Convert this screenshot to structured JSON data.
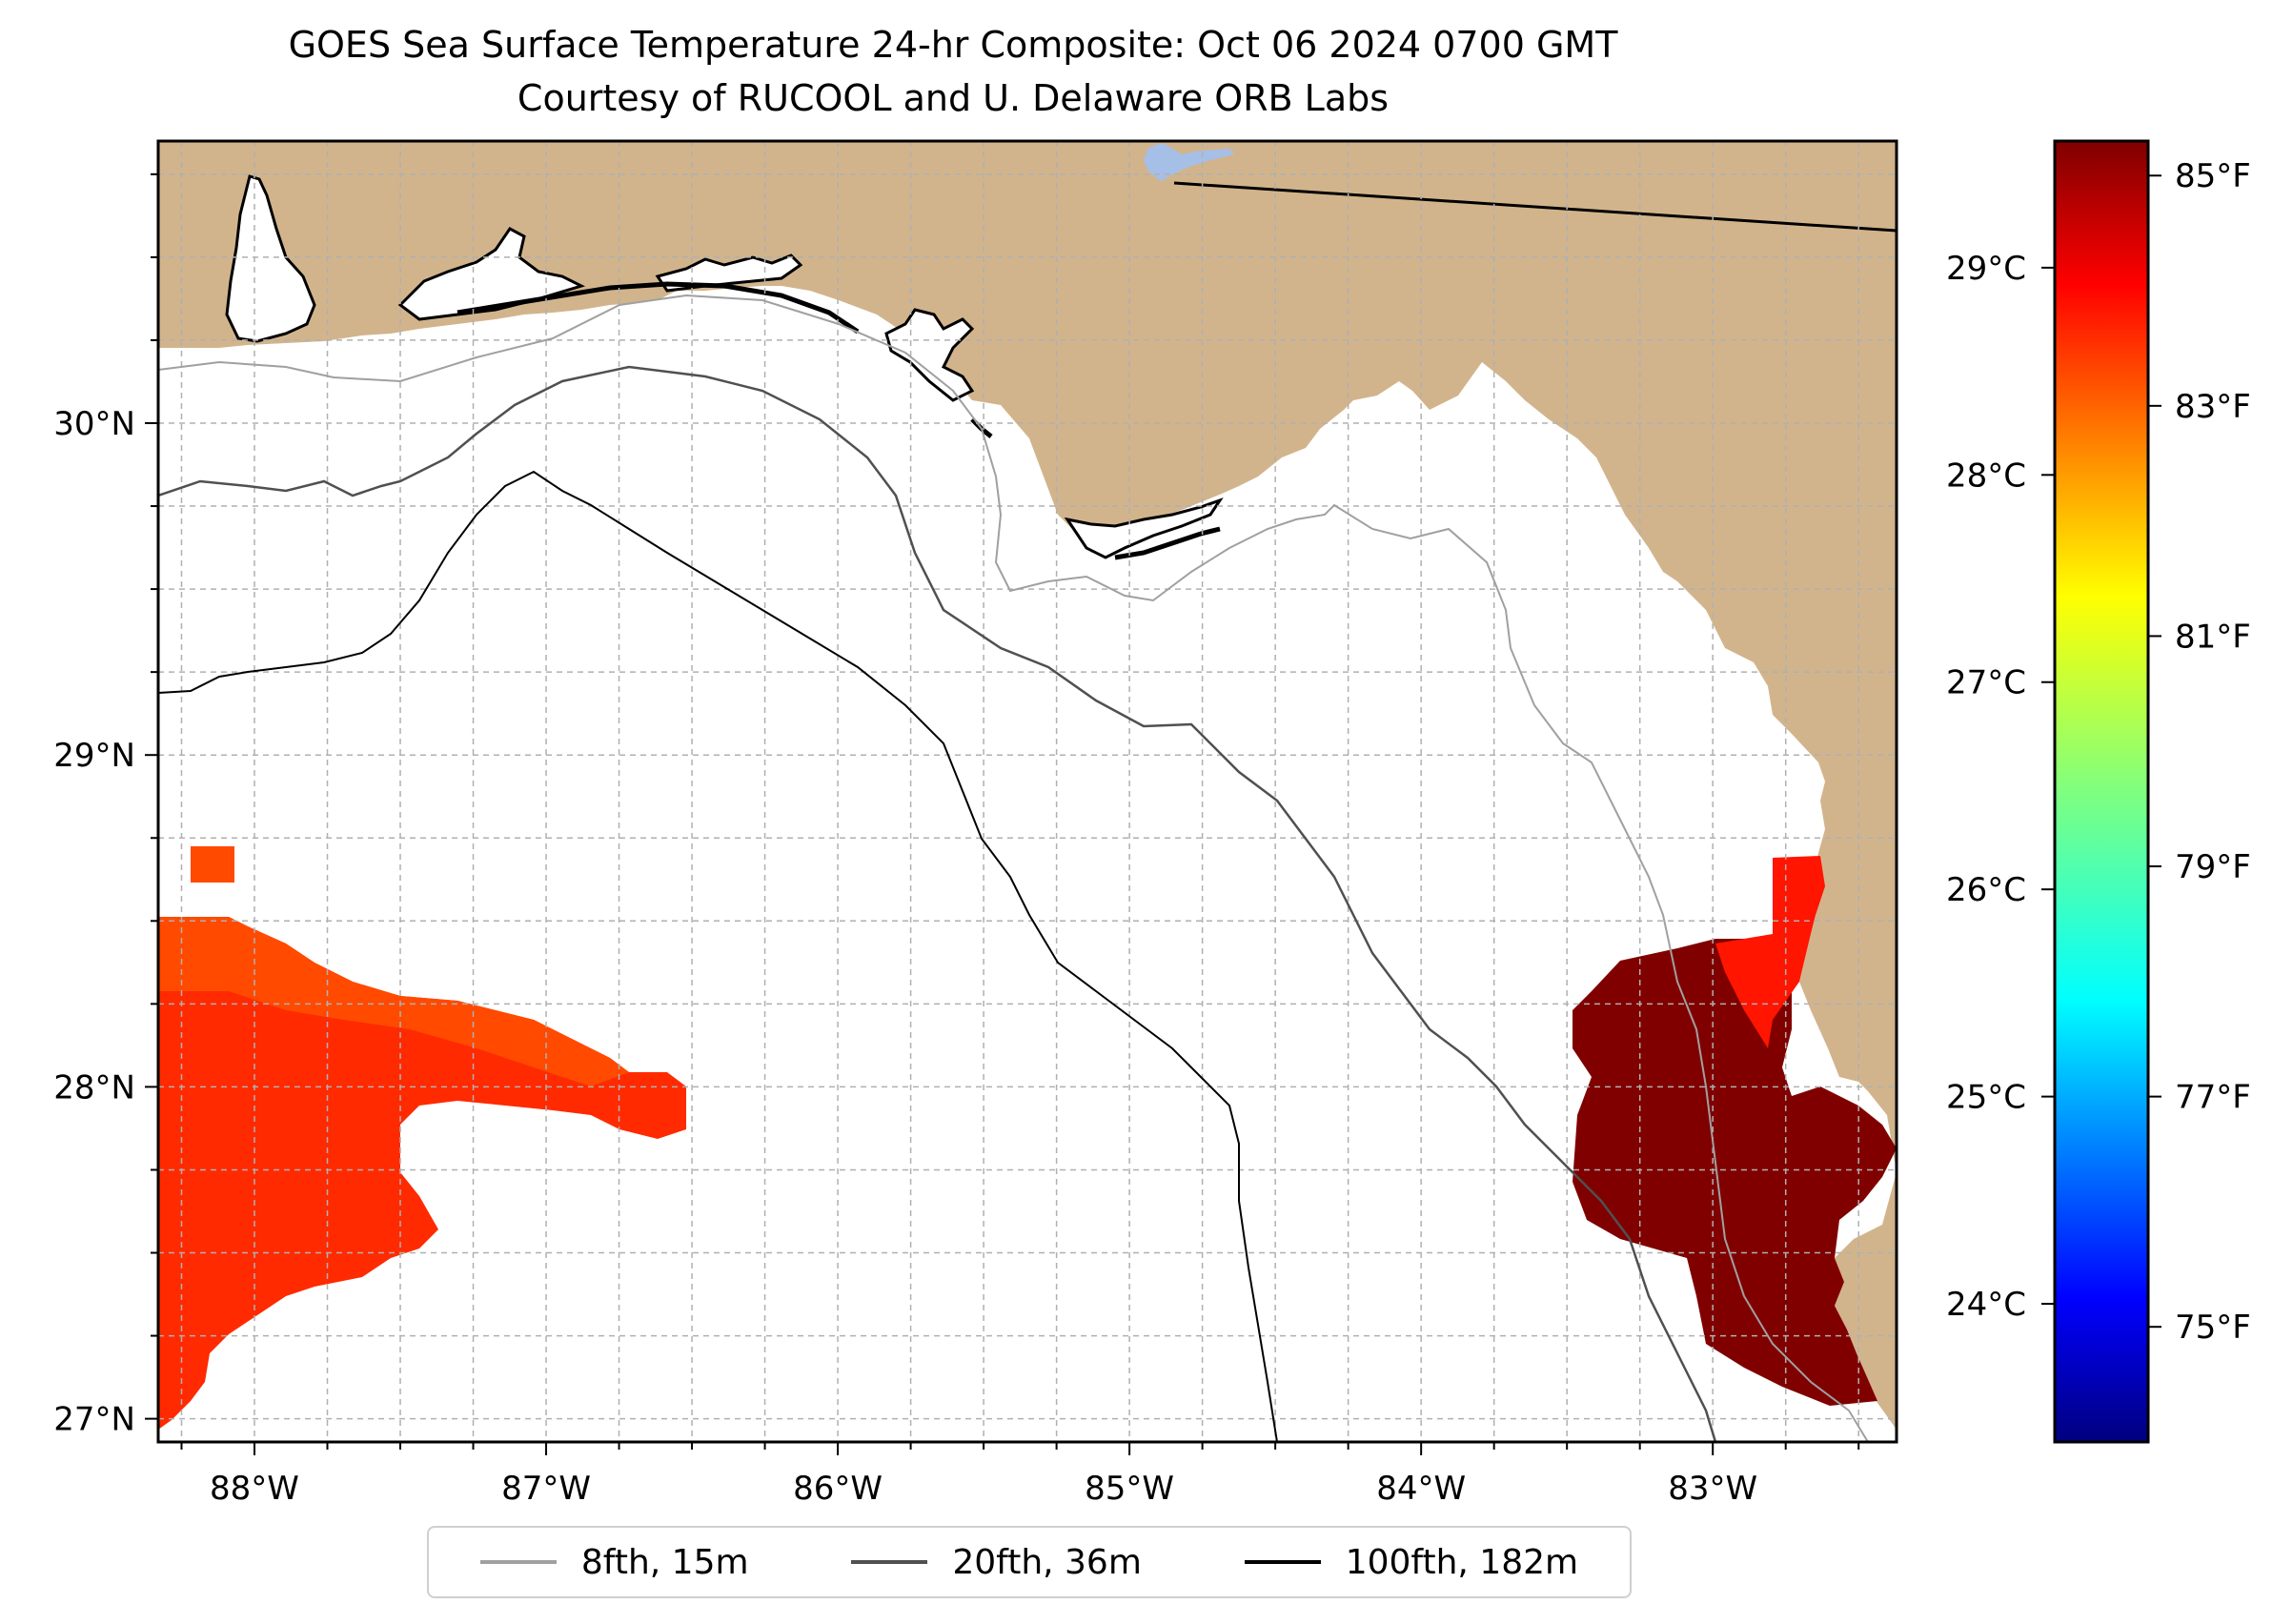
{
  "title": {
    "line1": "GOES Sea Surface Temperature 24-hr Composite: Oct 06 2024 0700 GMT",
    "line2": "Courtesy of RUCOOL and U. Delaware ORB Labs"
  },
  "map": {
    "lon_range": [
      -88.33,
      -82.37
    ],
    "lat_range": [
      26.93,
      30.85
    ],
    "land_color": "#d2b48c",
    "water_color": "#ffffff",
    "lake_color": "#a5bfe7",
    "grid": "dashed, every 0.25 degrees",
    "lon_ticks": [
      {
        "value": -88,
        "label": "88°W"
      },
      {
        "value": -87,
        "label": "87°W"
      },
      {
        "value": -86,
        "label": "86°W"
      },
      {
        "value": -85,
        "label": "85°W"
      },
      {
        "value": -84,
        "label": "84°W"
      },
      {
        "value": -83,
        "label": "83°W"
      }
    ],
    "lat_ticks": [
      {
        "value": 30,
        "label": "30°N"
      },
      {
        "value": 29,
        "label": "29°N"
      },
      {
        "value": 28,
        "label": "28°N"
      },
      {
        "value": 27,
        "label": "27°N"
      }
    ],
    "sst_patches": [
      {
        "region": "western",
        "temperature_f": 84.2,
        "color": "#ff2a00"
      },
      {
        "region": "western-north",
        "temperature_f": 83.7,
        "color": "#ff4a00"
      },
      {
        "region": "eastern-offshore",
        "temperature_f": 85.2,
        "color": "#800000"
      },
      {
        "region": "eastern-nearshore",
        "temperature_f": 84.6,
        "color": "#ff1500"
      }
    ]
  },
  "colorbar": {
    "colormap": "jet",
    "range_f": [
      74.0,
      85.3
    ],
    "celsius_ticks": [
      {
        "value": 29,
        "label": "29°C"
      },
      {
        "value": 28,
        "label": "28°C"
      },
      {
        "value": 27,
        "label": "27°C"
      },
      {
        "value": 26,
        "label": "26°C"
      },
      {
        "value": 25,
        "label": "25°C"
      },
      {
        "value": 24,
        "label": "24°C"
      }
    ],
    "fahrenheit_ticks": [
      {
        "value": 85,
        "label": "85°F"
      },
      {
        "value": 83,
        "label": "83°F"
      },
      {
        "value": 81,
        "label": "81°F"
      },
      {
        "value": 79,
        "label": "79°F"
      },
      {
        "value": 77,
        "label": "77°F"
      },
      {
        "value": 75,
        "label": "75°F"
      }
    ]
  },
  "legend": {
    "items": [
      {
        "label": "8fth, 15m",
        "color": "#a0a0a0"
      },
      {
        "label": "20fth, 36m",
        "color": "#505050"
      },
      {
        "label": "100fth, 182m",
        "color": "#000000"
      }
    ]
  }
}
